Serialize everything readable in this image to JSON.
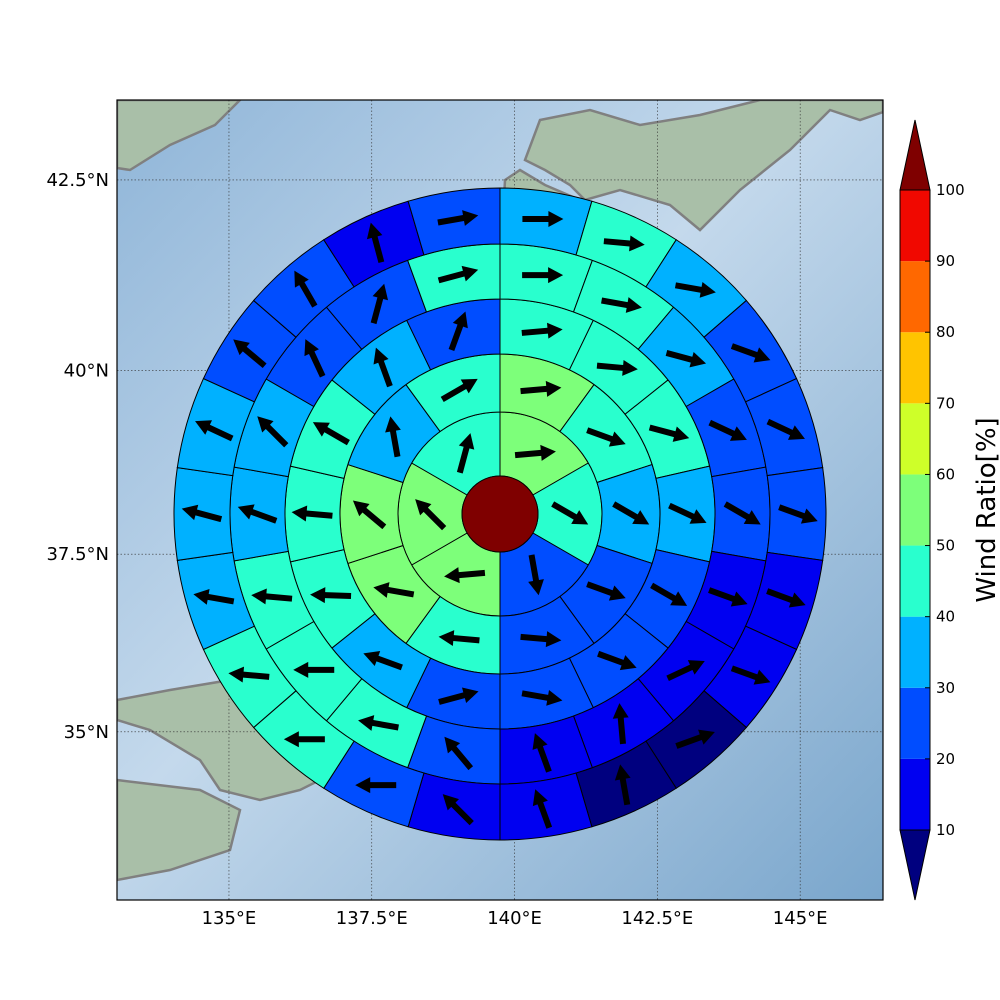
{
  "chart_data": {
    "type": "polar_grid",
    "xlim": [
      133.04,
      146.45
    ],
    "ylim": [
      32.56,
      43.52
    ],
    "xticks": [
      {
        "value": 135,
        "label": "135°E"
      },
      {
        "value": 137.5,
        "label": "137.5°E"
      },
      {
        "value": 140,
        "label": "140°E"
      },
      {
        "value": 142.5,
        "label": "142.5°E"
      },
      {
        "value": 145,
        "label": "145°E"
      }
    ],
    "yticks": [
      {
        "value": 35,
        "label": "35°N"
      },
      {
        "value": 37.5,
        "label": "37.5°N"
      },
      {
        "value": 40,
        "label": "40°N"
      },
      {
        "value": 42.5,
        "label": "42.5°N"
      }
    ],
    "grid": true,
    "colorbar": {
      "label": "Wind Ratio[%]",
      "levels": [
        10,
        20,
        30,
        40,
        50,
        60,
        70,
        80,
        90,
        100
      ],
      "colors": [
        "#00007f",
        "#0000f1",
        "#004dff",
        "#00b1ff",
        "#29ffce",
        "#7dff7a",
        "#ceff29",
        "#ffc400",
        "#ff6800",
        "#f10800",
        "#7f0000"
      ]
    },
    "rings": [
      {
        "values": [
          55,
          45,
          25,
          55,
          55,
          45
        ],
        "directions": [
          85,
          120,
          170,
          265,
          315,
          15
        ]
      },
      {
        "values": [
          55,
          45,
          35,
          25,
          25,
          45,
          55,
          55,
          35,
          45
        ],
        "directions": [
          85,
          110,
          120,
          110,
          95,
          275,
          280,
          310,
          350,
          60
        ]
      },
      {
        "values": [
          45,
          45,
          45,
          35,
          25,
          25,
          25,
          25,
          35,
          45,
          45,
          45,
          35,
          25
        ],
        "directions": [
          85,
          95,
          105,
          115,
          120,
          110,
          100,
          75,
          290,
          272,
          275,
          300,
          340,
          20
        ]
      },
      {
        "values": [
          45,
          45,
          35,
          25,
          25,
          15,
          15,
          15,
          15,
          25,
          45,
          45,
          45,
          35,
          35,
          25,
          25,
          45
        ],
        "directions": [
          90,
          100,
          105,
          115,
          120,
          110,
          65,
          355,
          340,
          320,
          280,
          270,
          275,
          290,
          315,
          335,
          15,
          75
        ]
      },
      {
        "values": [
          35,
          45,
          35,
          25,
          25,
          25,
          15,
          15,
          5,
          5,
          15,
          15,
          25,
          45,
          45,
          35,
          35,
          35,
          25,
          25,
          15,
          25
        ],
        "directions": [
          90,
          95,
          100,
          110,
          115,
          110,
          110,
          110,
          70,
          350,
          340,
          315,
          270,
          270,
          275,
          280,
          285,
          295,
          310,
          330,
          345,
          80
        ]
      }
    ]
  }
}
